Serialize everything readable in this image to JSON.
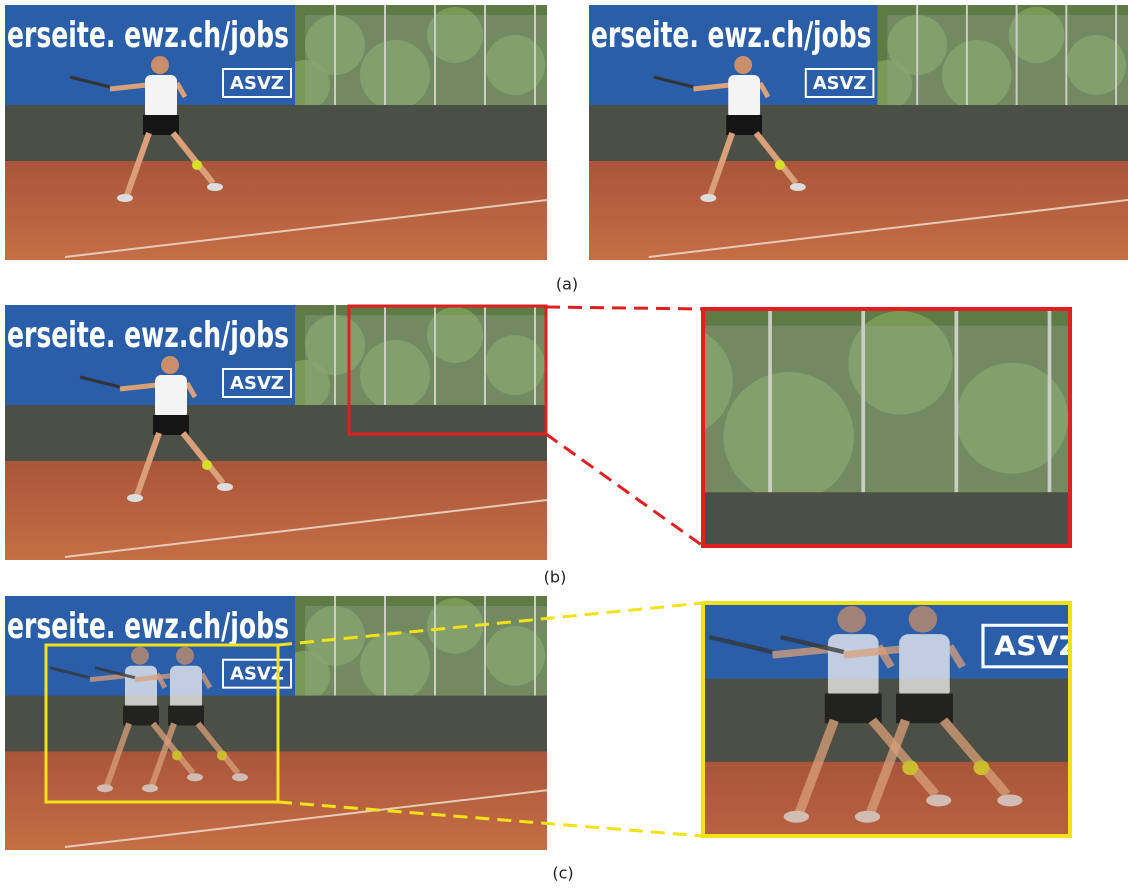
{
  "figure": {
    "panels": [
      {
        "label": "(a)",
        "images": [
          {
            "banner": "erseite. ewz.ch/jobs",
            "logo": "ASVZ"
          },
          {
            "banner": "erseite. ewz.ch/jobs",
            "logo": "ASVZ"
          }
        ]
      },
      {
        "label": "(b)",
        "images": [
          {
            "banner": "erseite. ewz.ch/jobs",
            "logo": "ASVZ"
          }
        ]
      },
      {
        "label": "(c)",
        "images": [
          {
            "banner": "erseite. ewz.ch/jobs",
            "logo": "ASVZ"
          },
          {
            "logo": "ASVZ"
          }
        ]
      }
    ]
  }
}
